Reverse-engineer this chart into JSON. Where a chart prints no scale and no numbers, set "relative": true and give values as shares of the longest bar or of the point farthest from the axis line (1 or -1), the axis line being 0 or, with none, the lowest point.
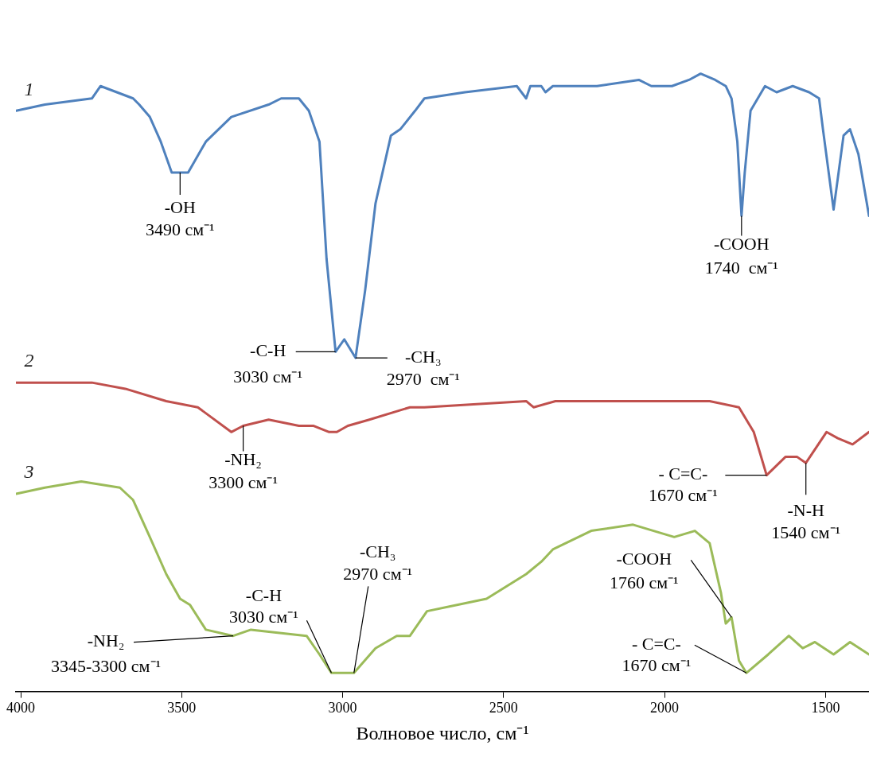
{
  "chart_data": {
    "type": "line",
    "xlabel": "Волновое число, см⁻¹",
    "relative": true,
    "xlim": [
      4015,
      1365
    ],
    "xticks": [
      4000,
      3500,
      3000,
      2500,
      2000,
      1500
    ],
    "grid": false,
    "legend": false,
    "marker": "none",
    "line_style": "solid",
    "series": [
      {
        "name": "1",
        "color": "#4f81bd",
        "x": [
          4014,
          3925,
          3779,
          3752,
          3651,
          3632,
          3599,
          3565,
          3531,
          3505,
          3480,
          3425,
          3346,
          3230,
          3191,
          3136,
          3105,
          3072,
          3050,
          3022,
          2995,
          2960,
          2930,
          2898,
          2850,
          2821,
          2775,
          2746,
          2620,
          2459,
          2430,
          2417,
          2383,
          2370,
          2347,
          2210,
          2080,
          2041,
          1995,
          1977,
          1924,
          1888,
          1843,
          1810,
          1792,
          1774,
          1761,
          1751,
          1733,
          1688,
          1652,
          1602,
          1551,
          1520,
          1508,
          1475,
          1444,
          1424,
          1398,
          1365
        ],
        "values": [
          0.94,
          0.95,
          0.96,
          0.98,
          0.96,
          0.95,
          0.93,
          0.89,
          0.84,
          0.84,
          0.84,
          0.89,
          0.93,
          0.95,
          0.96,
          0.96,
          0.94,
          0.89,
          0.7,
          0.55,
          0.57,
          0.54,
          0.65,
          0.79,
          0.9,
          0.91,
          0.94,
          0.96,
          0.97,
          0.98,
          0.96,
          0.98,
          0.98,
          0.97,
          0.98,
          0.98,
          0.99,
          0.98,
          0.98,
          0.98,
          0.99,
          1.0,
          0.99,
          0.98,
          0.96,
          0.89,
          0.77,
          0.84,
          0.94,
          0.98,
          0.97,
          0.98,
          0.97,
          0.96,
          0.91,
          0.78,
          0.9,
          0.91,
          0.87,
          0.77
        ]
      },
      {
        "name": "2",
        "color": "#c0504d",
        "x": [
          4014,
          3779,
          3675,
          3548,
          3450,
          3346,
          3309,
          3230,
          3136,
          3090,
          3042,
          3018,
          2984,
          2917,
          2791,
          2746,
          2430,
          2407,
          2339,
          1860,
          1769,
          1723,
          1683,
          1624,
          1589,
          1561,
          1497,
          1462,
          1416,
          1365
        ],
        "values": [
          0.5,
          0.5,
          0.49,
          0.47,
          0.46,
          0.42,
          0.43,
          0.44,
          0.43,
          0.43,
          0.42,
          0.42,
          0.43,
          0.44,
          0.46,
          0.46,
          0.47,
          0.46,
          0.47,
          0.47,
          0.46,
          0.42,
          0.35,
          0.38,
          0.38,
          0.37,
          0.42,
          0.41,
          0.4,
          0.42
        ]
      },
      {
        "name": "3",
        "color": "#9bbb59",
        "x": [
          4014,
          3925,
          3812,
          3692,
          3651,
          3599,
          3548,
          3505,
          3474,
          3425,
          3340,
          3285,
          3112,
          3072,
          3035,
          2965,
          2898,
          2832,
          2791,
          2738,
          2553,
          2430,
          2383,
          2347,
          2228,
          2098,
          1970,
          1906,
          1860,
          1825,
          1810,
          1792,
          1769,
          1746,
          1678,
          1614,
          1571,
          1533,
          1475,
          1424,
          1365
        ],
        "values": [
          0.32,
          0.33,
          0.34,
          0.33,
          0.31,
          0.25,
          0.19,
          0.15,
          0.14,
          0.1,
          0.09,
          0.1,
          0.09,
          0.06,
          0.03,
          0.03,
          0.07,
          0.09,
          0.09,
          0.13,
          0.15,
          0.19,
          0.21,
          0.23,
          0.26,
          0.27,
          0.25,
          0.26,
          0.24,
          0.16,
          0.11,
          0.12,
          0.05,
          0.03,
          0.06,
          0.09,
          0.07,
          0.08,
          0.06,
          0.08,
          0.06
        ]
      }
    ],
    "annotations": [
      {
        "text": "-OH\n3490 см⁻¹",
        "x": 3505,
        "y": 0.84
      },
      {
        "text": "-C-H\n3030 см⁻¹",
        "x": 3022,
        "y": 0.55
      },
      {
        "text": "-CH₃\n2970  см⁻¹",
        "x": 2960,
        "y": 0.54
      },
      {
        "text": "-COOH\n1740  см⁻¹",
        "x": 1761,
        "y": 0.77
      },
      {
        "text": "-NH₂\n3300 см⁻¹",
        "x": 3309,
        "y": 0.43
      },
      {
        "text": "- C=C-\n1670 см⁻¹",
        "x": 1683,
        "y": 0.35
      },
      {
        "text": "-N-H\n1540 см⁻¹",
        "x": 1561,
        "y": 0.37
      },
      {
        "text": "-CH₃\n2970 см⁻¹",
        "x": 2965,
        "y": 0.03
      },
      {
        "text": "-C-H\n3030 см⁻¹",
        "x": 3035,
        "y": 0.03
      },
      {
        "text": "-NH₂\n3345-3300 см⁻¹",
        "x": 3340,
        "y": 0.09
      },
      {
        "text": "-COOH\n1760 см⁻¹",
        "x": 1792,
        "y": 0.12
      },
      {
        "text": "- C=C-\n1670 см⁻¹",
        "x": 1746,
        "y": 0.03
      }
    ]
  }
}
